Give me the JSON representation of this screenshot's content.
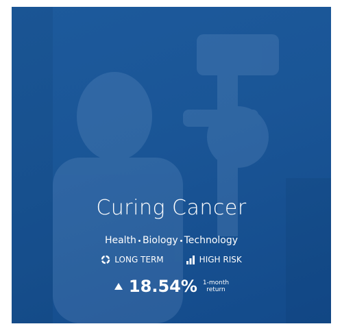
{
  "card": {
    "title": "Curing Cancer",
    "tags": [
      "Health",
      "Biology",
      "Technology"
    ],
    "badges": {
      "horizon": "LONG TERM",
      "risk": "HIGH RISK"
    },
    "performance": {
      "value": "18.54%",
      "period": "1-month",
      "label": "return"
    }
  }
}
